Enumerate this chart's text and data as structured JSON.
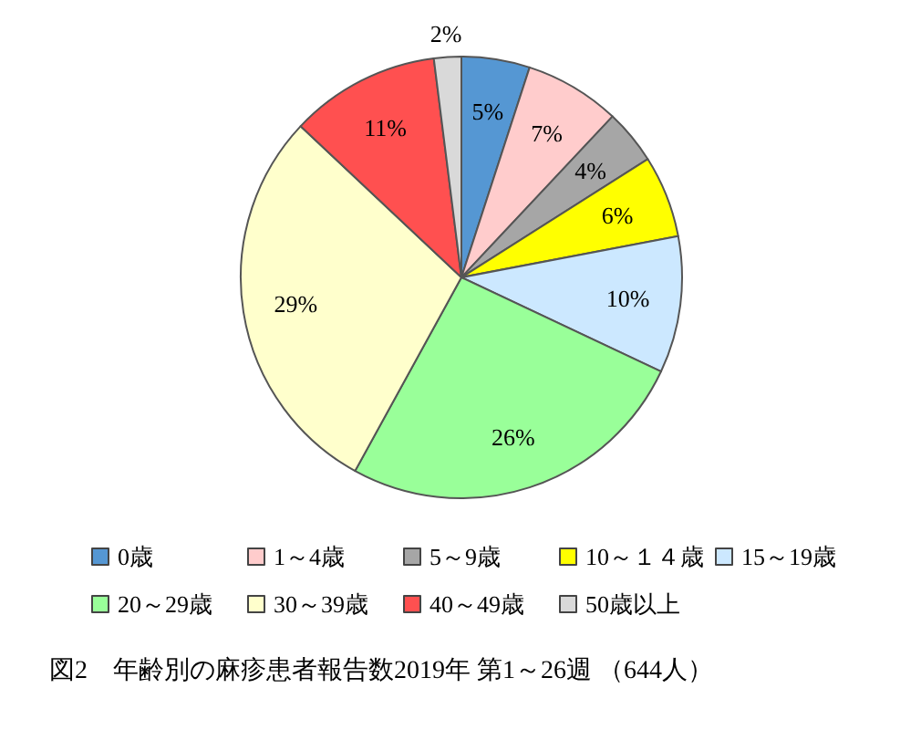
{
  "chart_data": {
    "type": "pie",
    "title": "図2　年齢別の麻疹患者報告数2019年 第1～26週 （644人）",
    "categories": [
      "0歳",
      "1～4歳",
      "5～9歳",
      "10～１４歳",
      "15～19歳",
      "20～29歳",
      "30～39歳",
      "40～49歳",
      "50歳以上"
    ],
    "values": [
      5,
      7,
      4,
      6,
      10,
      26,
      29,
      11,
      2
    ],
    "colors": [
      "#5597d3",
      "#ffcccc",
      "#a6a6a6",
      "#ffff00",
      "#cce8ff",
      "#99ff99",
      "#ffffcc",
      "#ff5050",
      "#d9d9d9"
    ],
    "value_labels": [
      "5%",
      "7%",
      "4%",
      "6%",
      "10%",
      "26%",
      "29%",
      "11%",
      "2%"
    ],
    "legend": "bottom"
  }
}
